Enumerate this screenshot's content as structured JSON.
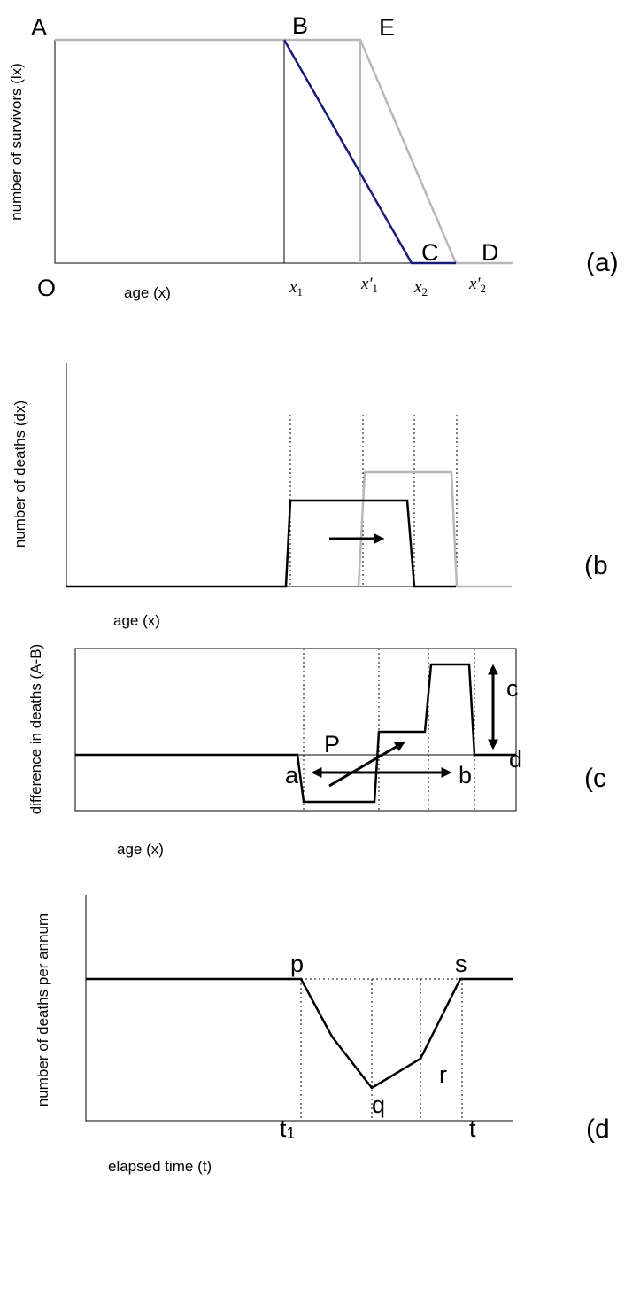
{
  "panels": [
    {
      "tag": "(a)",
      "y_label": "number of survivors (lx)",
      "x_label": "age (x)",
      "points": [
        "A",
        "B",
        "E",
        "C",
        "D",
        "O"
      ],
      "ages": [
        {
          "base": "x",
          "sub": "1"
        },
        {
          "base": "x'",
          "sub": "1"
        },
        {
          "base": "x",
          "sub": "2"
        },
        {
          "base": "x'",
          "sub": "2"
        }
      ]
    },
    {
      "tag": "(b",
      "y_label": "number of deaths (dx)",
      "x_label": "age (x)"
    },
    {
      "tag": "(c",
      "y_label": "difference in deaths (A-B)",
      "x_label": "age (x)",
      "points": [
        "P",
        "a",
        "b",
        "c",
        "d"
      ]
    },
    {
      "tag": "(d",
      "y_label": "number of deaths per annum",
      "x_label": "elapsed time (t)",
      "points": [
        "p",
        "s",
        "q",
        "r",
        "t"
      ],
      "times": [
        {
          "base": "t",
          "sub": "1"
        }
      ]
    }
  ]
}
